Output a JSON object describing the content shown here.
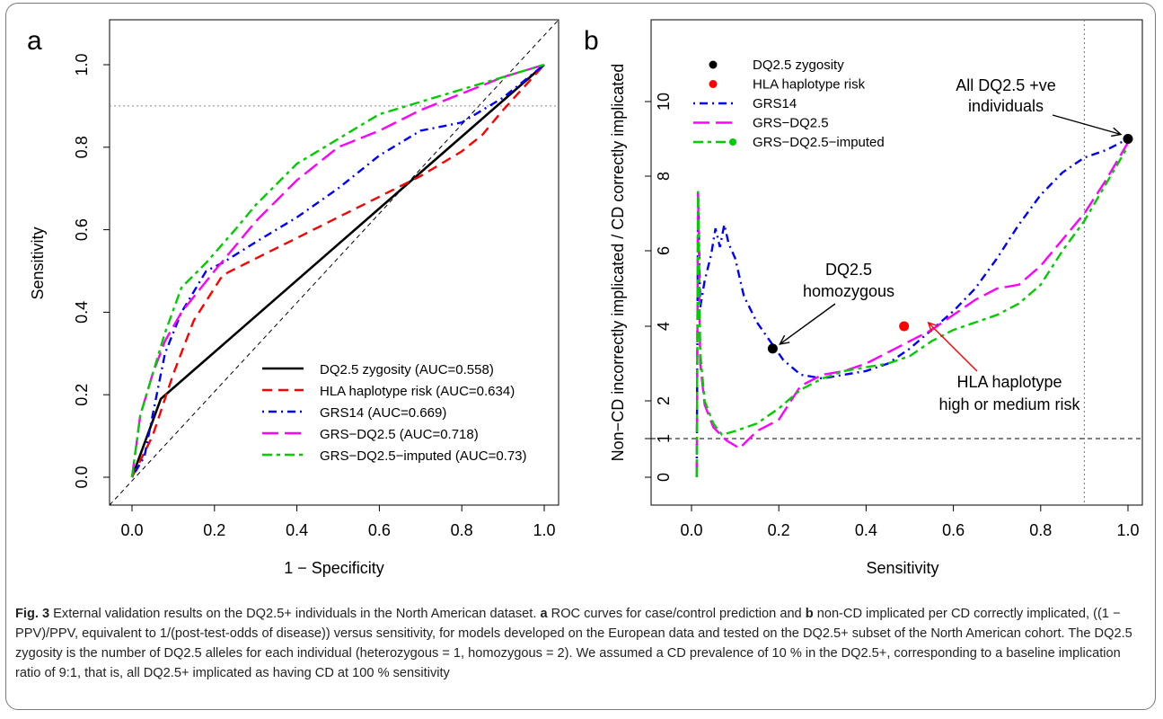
{
  "chart_data": [
    {
      "panel_label": "a",
      "type": "line",
      "xlabel": "1 − Specificity",
      "ylabel": "Sensitivity",
      "xlim": [
        0,
        1
      ],
      "ylim": [
        0,
        1
      ],
      "x_ticks": [
        "0.0",
        "0.2",
        "0.4",
        "0.6",
        "0.8",
        "1.0"
      ],
      "y_ticks": [
        "0.0",
        "0.2",
        "0.4",
        "0.6",
        "0.8",
        "1.0"
      ],
      "reference_lines": [
        {
          "kind": "diagonal",
          "style": "dashed"
        },
        {
          "kind": "horizontal",
          "y": 0.9,
          "style": "dotted"
        }
      ],
      "legend": "bottom-right",
      "series": [
        {
          "name": "DQ2.5 zygosity (AUC=0.558)",
          "color": "#000000",
          "dash": "solid",
          "x": [
            0,
            0.07,
            1
          ],
          "y": [
            0,
            0.19,
            1
          ]
        },
        {
          "name": "HLA haplotype risk (AUC=0.634)",
          "color": "#ff0000",
          "dash": "dashed",
          "x": [
            0,
            0.05,
            0.1,
            0.15,
            0.22,
            0.3,
            0.4,
            0.5,
            0.6,
            0.7,
            0.8,
            0.85,
            0.9,
            1
          ],
          "y": [
            0,
            0.1,
            0.25,
            0.38,
            0.49,
            0.53,
            0.58,
            0.63,
            0.68,
            0.73,
            0.79,
            0.83,
            0.89,
            1
          ]
        },
        {
          "name": "GRS14 (AUC=0.669)",
          "color": "#0000ff",
          "dash": "dashdot",
          "x": [
            0,
            0.03,
            0.05,
            0.08,
            0.12,
            0.18,
            0.22,
            0.3,
            0.4,
            0.5,
            0.6,
            0.7,
            0.8,
            0.9,
            1
          ],
          "y": [
            0,
            0.05,
            0.15,
            0.3,
            0.4,
            0.5,
            0.52,
            0.57,
            0.63,
            0.7,
            0.78,
            0.84,
            0.86,
            0.92,
            1
          ]
        },
        {
          "name": "GRS−DQ2.5 (AUC=0.718)",
          "color": "#ff00ff",
          "dash": "longdash",
          "x": [
            0,
            0.02,
            0.05,
            0.08,
            0.12,
            0.2,
            0.25,
            0.3,
            0.4,
            0.5,
            0.6,
            0.7,
            0.8,
            0.9,
            1
          ],
          "y": [
            0,
            0.15,
            0.25,
            0.33,
            0.4,
            0.5,
            0.56,
            0.62,
            0.72,
            0.8,
            0.84,
            0.89,
            0.93,
            0.97,
            1
          ]
        },
        {
          "name": "GRS−DQ2.5−imputed (AUC=0.73)",
          "color": "#00cc00",
          "dash": "twodash",
          "x": [
            0,
            0.02,
            0.05,
            0.08,
            0.12,
            0.18,
            0.25,
            0.3,
            0.4,
            0.5,
            0.6,
            0.7,
            0.8,
            0.9,
            1
          ],
          "y": [
            0,
            0.15,
            0.25,
            0.35,
            0.46,
            0.52,
            0.6,
            0.66,
            0.76,
            0.82,
            0.88,
            0.91,
            0.94,
            0.97,
            1
          ]
        }
      ]
    },
    {
      "panel_label": "b",
      "type": "line",
      "xlabel": "Sensitivity",
      "ylabel": "Non−CD incorrectly implicated / CD correctly implicated",
      "xlim": [
        0,
        1
      ],
      "ylim": [
        0,
        11
      ],
      "x_ticks": [
        "0.0",
        "0.2",
        "0.4",
        "0.6",
        "0.8",
        "1.0"
      ],
      "y_ticks": [
        "0",
        "1",
        "2",
        "4",
        "6",
        "8",
        "10"
      ],
      "reference_lines": [
        {
          "kind": "horizontal",
          "y": 1,
          "style": "dashed"
        },
        {
          "kind": "vertical",
          "x": 0.9,
          "style": "dotted"
        }
      ],
      "legend": "top-left",
      "legend_entries": [
        {
          "name": "DQ2.5 zygosity",
          "color": "#000000",
          "style": "point"
        },
        {
          "name": "HLA haplotype risk",
          "color": "#ff0000",
          "style": "point"
        },
        {
          "name": "GRS14",
          "color": "#0000ff",
          "style": "dashdot"
        },
        {
          "name": "GRS−DQ2.5",
          "color": "#ff00ff",
          "style": "longdash"
        },
        {
          "name": "GRS−DQ2.5−imputed",
          "color": "#00cc00",
          "style": "twodash"
        }
      ],
      "points": [
        {
          "series": "DQ2.5 zygosity",
          "color": "#000000",
          "x": 0.186,
          "y": 3.4
        },
        {
          "series": "DQ2.5 zygosity",
          "color": "#000000",
          "x": 1.0,
          "y": 9.0
        },
        {
          "series": "HLA haplotype risk",
          "color": "#ff0000",
          "x": 0.487,
          "y": 4.0
        }
      ],
      "series": [
        {
          "name": "GRS14",
          "color": "#0000ff",
          "dash": "dashdot",
          "x": [
            0.012,
            0.015,
            0.02,
            0.03,
            0.045,
            0.055,
            0.065,
            0.075,
            0.085,
            0.1,
            0.12,
            0.15,
            0.18,
            0.21,
            0.25,
            0.3,
            0.35,
            0.4,
            0.45,
            0.5,
            0.55,
            0.6,
            0.65,
            0.7,
            0.75,
            0.8,
            0.85,
            0.9,
            0.95,
            1.0
          ],
          "y": [
            0,
            7.6,
            4.5,
            5.2,
            5.9,
            6.6,
            6.1,
            6.7,
            6.2,
            5.8,
            4.8,
            4.1,
            3.6,
            3.1,
            2.7,
            2.6,
            2.7,
            2.8,
            3.0,
            3.4,
            3.9,
            4.4,
            5.0,
            5.8,
            6.7,
            7.5,
            8.1,
            8.5,
            8.7,
            9.0
          ]
        },
        {
          "name": "GRS−DQ2.5",
          "color": "#ff00ff",
          "dash": "longdash",
          "x": [
            0.012,
            0.015,
            0.02,
            0.03,
            0.05,
            0.08,
            0.11,
            0.15,
            0.2,
            0.25,
            0.3,
            0.35,
            0.4,
            0.45,
            0.5,
            0.55,
            0.6,
            0.65,
            0.7,
            0.75,
            0.8,
            0.85,
            0.9,
            0.95,
            1.0
          ],
          "y": [
            0,
            7.6,
            3.0,
            1.9,
            1.3,
            0.95,
            0.75,
            1.2,
            1.5,
            2.4,
            2.7,
            2.8,
            3.0,
            3.3,
            3.6,
            3.9,
            4.3,
            4.7,
            5.0,
            5.1,
            5.6,
            6.3,
            7.0,
            7.9,
            8.9
          ]
        },
        {
          "name": "GRS−DQ2.5−imputed",
          "color": "#00cc00",
          "dash": "twodash",
          "x": [
            0.012,
            0.015,
            0.02,
            0.03,
            0.05,
            0.07,
            0.1,
            0.15,
            0.2,
            0.25,
            0.3,
            0.35,
            0.4,
            0.45,
            0.5,
            0.55,
            0.6,
            0.65,
            0.7,
            0.75,
            0.8,
            0.85,
            0.9,
            0.95,
            1.0
          ],
          "y": [
            0,
            7.6,
            3.3,
            2.0,
            1.4,
            1.1,
            1.2,
            1.4,
            1.8,
            2.3,
            2.6,
            2.8,
            2.9,
            3.0,
            3.2,
            3.6,
            3.9,
            4.1,
            4.3,
            4.6,
            5.1,
            6.0,
            6.8,
            7.8,
            8.8
          ]
        }
      ],
      "annotations": [
        {
          "lines": [
            "All DQ2.5 +ve",
            "individuals"
          ],
          "color": "#000000",
          "target": [
            1.0,
            9.0
          ]
        },
        {
          "lines": [
            "DQ2.5",
            "homozygous"
          ],
          "color": "#000000",
          "target": [
            0.186,
            3.4
          ]
        },
        {
          "lines": [
            "HLA haplotype",
            "high or medium risk"
          ],
          "color": "#ff0000",
          "target": [
            0.487,
            4.0
          ]
        }
      ]
    }
  ],
  "caption": {
    "fig_label": "Fig. 3",
    "text_1": " External validation results on the DQ2.5+ individuals in the North American dataset. ",
    "panel_a": "a",
    "text_2": " ROC curves for case/control prediction and ",
    "panel_b": "b",
    "text_3": " non-CD implicated per CD correctly implicated, ((1 − PPV)/PPV, equivalent to 1/(post-test-odds of disease)) versus sensitivity, for models developed on the European data and tested on the DQ2.5+ subset of the North American cohort. The DQ2.5 zygosity is the number of DQ2.5 alleles for each individual (heterozygous = 1, homozygous = 2). We assumed a CD prevalence of 10 % in the DQ2.5+, corresponding to a baseline implication ratio of 9:1, that is, all DQ2.5+ implicated as having CD at 100 % sensitivity"
  }
}
